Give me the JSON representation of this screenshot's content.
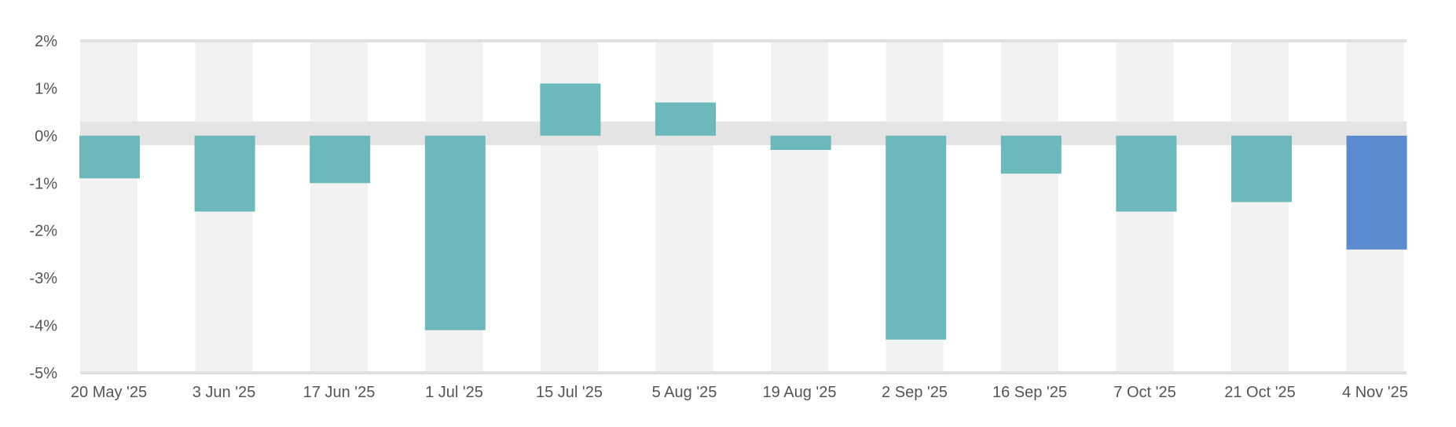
{
  "chart_data": {
    "type": "bar",
    "categories": [
      "20 May '25",
      "3 Jun '25",
      "17 Jun '25",
      "1 Jul '25",
      "15 Jul '25",
      "5 Aug '25",
      "19 Aug '25",
      "2 Sep '25",
      "16 Sep '25",
      "7 Oct '25",
      "21 Oct '25",
      "4 Nov '25"
    ],
    "values": [
      -0.9,
      -1.6,
      -1.0,
      -4.1,
      1.1,
      0.7,
      -0.3,
      -4.3,
      -0.8,
      -1.6,
      -1.4,
      -2.4
    ],
    "y_ticks": [
      "2%",
      "1%",
      "0%",
      "-1%",
      "-2%",
      "-3%",
      "-4%",
      "-5%"
    ],
    "y_tick_values": [
      2,
      1,
      0,
      -1,
      -2,
      -3,
      -4,
      -5
    ],
    "ylim": [
      -5,
      2
    ],
    "zero_band": [
      -0.2,
      0.3
    ],
    "title": "",
    "xlabel": "",
    "ylabel": "",
    "highlight_index": 11,
    "colors": {
      "bar": "#6db8bb",
      "highlight": "#5b8bce",
      "stripe": "#f2f2f2",
      "zero_band": "#e4e4e4",
      "axis_line": "#e0e0e0"
    }
  }
}
